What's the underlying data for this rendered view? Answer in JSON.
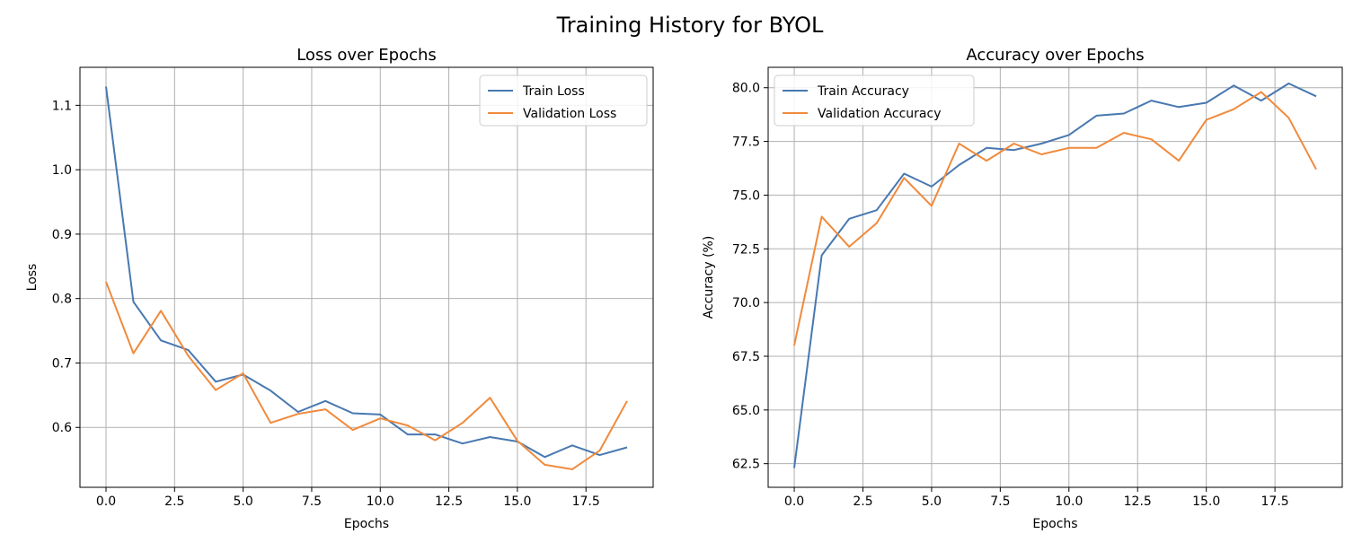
{
  "suptitle": "Training History for BYOL",
  "chart_data": [
    {
      "type": "line",
      "title": "Loss over Epochs",
      "xlabel": "Epochs",
      "ylabel": "Loss",
      "xlim": [
        -0.95,
        19.95
      ],
      "ylim": [
        0.507,
        1.159
      ],
      "xticks": [
        0,
        2.5,
        5,
        7.5,
        10,
        12.5,
        15,
        17.5
      ],
      "xtick_labels": [
        "0.0",
        "2.5",
        "5.0",
        "7.5",
        "10.0",
        "12.5",
        "15.0",
        "17.5"
      ],
      "yticks": [
        0.6,
        0.7,
        0.8,
        0.9,
        1.0,
        1.1
      ],
      "ytick_labels": [
        "0.6",
        "0.7",
        "0.8",
        "0.9",
        "1.0",
        "1.1"
      ],
      "grid": true,
      "legend_position": "upper right",
      "x": [
        0,
        1,
        2,
        3,
        4,
        5,
        6,
        7,
        8,
        9,
        10,
        11,
        12,
        13,
        14,
        15,
        16,
        17,
        18,
        19
      ],
      "series": [
        {
          "name": "Train Loss",
          "color": "#4878b0",
          "values": [
            1.129,
            0.795,
            0.735,
            0.72,
            0.671,
            0.682,
            0.657,
            0.624,
            0.641,
            0.622,
            0.62,
            0.589,
            0.589,
            0.575,
            0.585,
            0.578,
            0.554,
            0.572,
            0.557,
            0.569
          ]
        },
        {
          "name": "Validation Loss",
          "color": "#f08a3c",
          "values": [
            0.826,
            0.715,
            0.781,
            0.711,
            0.658,
            0.684,
            0.607,
            0.621,
            0.628,
            0.596,
            0.614,
            0.603,
            0.58,
            0.607,
            0.646,
            0.579,
            0.542,
            0.535,
            0.564,
            0.641
          ]
        }
      ]
    },
    {
      "type": "line",
      "title": "Accuracy over Epochs",
      "xlabel": "Epochs",
      "ylabel": "Accuracy (%)",
      "xlim": [
        -0.95,
        19.95
      ],
      "ylim": [
        61.4,
        80.95
      ],
      "xticks": [
        0,
        2.5,
        5,
        7.5,
        10,
        12.5,
        15,
        17.5
      ],
      "xtick_labels": [
        "0.0",
        "2.5",
        "5.0",
        "7.5",
        "10.0",
        "12.5",
        "15.0",
        "17.5"
      ],
      "yticks": [
        62.5,
        65.0,
        67.5,
        70.0,
        72.5,
        75.0,
        77.5,
        80.0
      ],
      "ytick_labels": [
        "62.5",
        "65.0",
        "67.5",
        "70.0",
        "72.5",
        "75.0",
        "77.5",
        "80.0"
      ],
      "grid": true,
      "legend_position": "upper left",
      "x": [
        0,
        1,
        2,
        3,
        4,
        5,
        6,
        7,
        8,
        9,
        10,
        11,
        12,
        13,
        14,
        15,
        16,
        17,
        18,
        19
      ],
      "series": [
        {
          "name": "Train Accuracy",
          "color": "#4878b0",
          "values": [
            62.3,
            72.2,
            73.9,
            74.3,
            76.0,
            75.4,
            76.4,
            77.2,
            77.1,
            77.4,
            77.8,
            78.7,
            78.8,
            79.4,
            79.1,
            79.3,
            80.1,
            79.4,
            80.2,
            79.6
          ]
        },
        {
          "name": "Validation Accuracy",
          "color": "#f08a3c",
          "values": [
            68.0,
            74.0,
            72.6,
            73.7,
            75.8,
            74.5,
            77.4,
            76.6,
            77.4,
            76.9,
            77.2,
            77.2,
            77.9,
            77.6,
            76.6,
            78.5,
            79.0,
            79.8,
            78.6,
            76.2
          ]
        }
      ]
    }
  ]
}
